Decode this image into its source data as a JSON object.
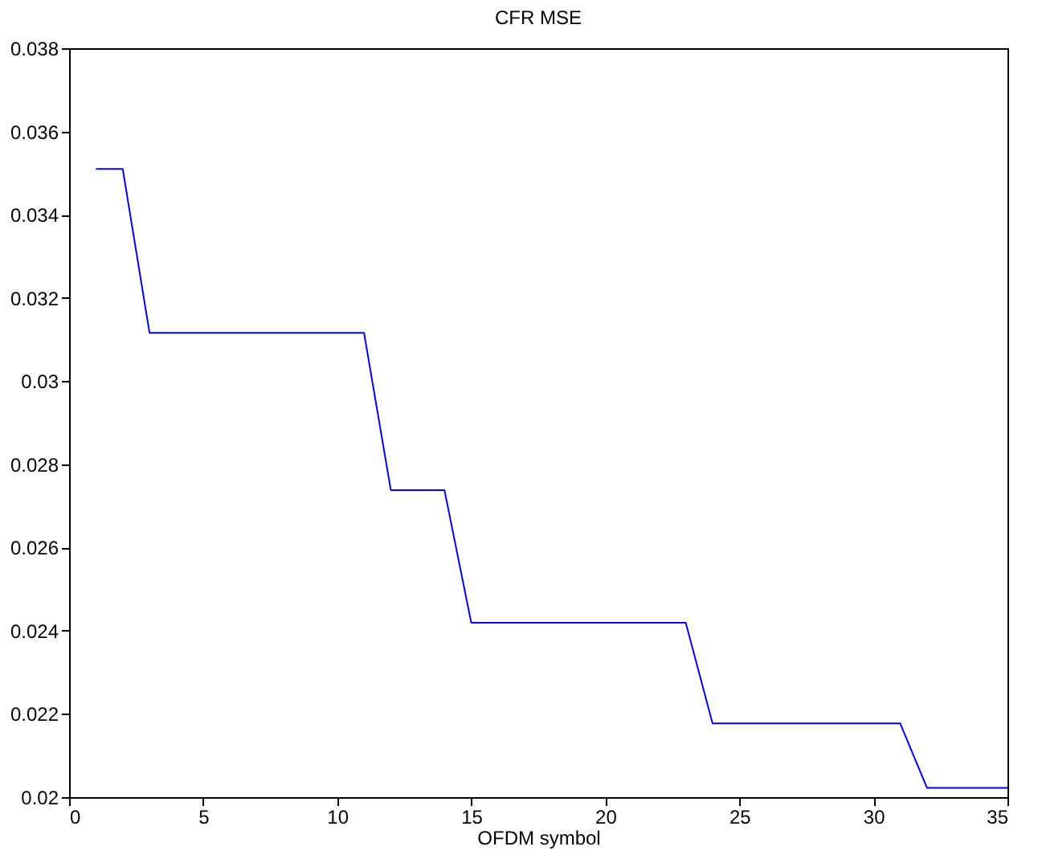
{
  "chart_data": {
    "type": "line",
    "title": "CFR MSE",
    "xlabel": "OFDM symbol",
    "x": [
      1,
      2,
      3,
      11,
      12,
      14,
      15,
      23,
      24,
      31,
      32,
      35
    ],
    "series": [
      {
        "color": "#0000ff",
        "values": [
          0.0351,
          0.0351,
          0.03116,
          0.03116,
          0.02738,
          0.02738,
          0.02419,
          0.02419,
          0.02177,
          0.02177,
          0.02022,
          0.02022
        ]
      }
    ],
    "xlim": [
      0,
      35
    ],
    "xticks": [
      0,
      5,
      10,
      15,
      20,
      25,
      30,
      35
    ],
    "ylim": [
      0.02,
      0.038
    ],
    "yticks": [
      0.02,
      0.022,
      0.024,
      0.026,
      0.028,
      0.03,
      0.032,
      0.034,
      0.036,
      0.038
    ],
    "grid": false,
    "legend": false,
    "marker": "none",
    "line_style": "solid"
  }
}
